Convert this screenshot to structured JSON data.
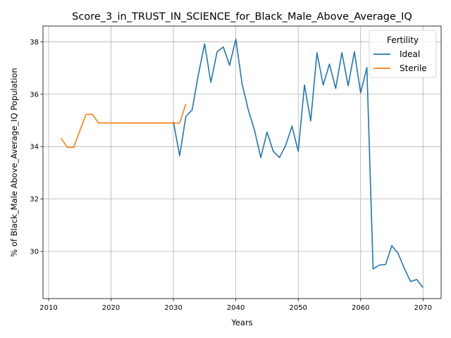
{
  "chart_data": {
    "type": "line",
    "title": "Score_3_in_TRUST_IN_SCIENCE_for_Black_Male_Above_Average_IQ",
    "xlabel": "Years",
    "ylabel": "% of Black_Male Above_Average_IQ Population",
    "xlim": [
      2009.1,
      2072.9
    ],
    "ylim": [
      28.2,
      38.6
    ],
    "xticks": [
      2010,
      2020,
      2030,
      2040,
      2050,
      2060,
      2070
    ],
    "yticks": [
      30,
      32,
      34,
      36,
      38
    ],
    "grid": true,
    "legend": {
      "title": "Fertility",
      "placement": "top-right"
    },
    "series": [
      {
        "name": "Ideal",
        "color": "#1f77b4",
        "x": [
          2030,
          2031,
          2032,
          2033,
          2034,
          2035,
          2036,
          2037,
          2038,
          2039,
          2040,
          2041,
          2042,
          2043,
          2044,
          2045,
          2046,
          2047,
          2048,
          2049,
          2050,
          2051,
          2052,
          2053,
          2054,
          2055,
          2056,
          2057,
          2058,
          2059,
          2060,
          2061,
          2062,
          2063,
          2064,
          2065,
          2066,
          2067,
          2068,
          2069,
          2070
        ],
        "y": [
          34.95,
          33.65,
          35.15,
          35.4,
          36.75,
          37.92,
          36.45,
          37.62,
          37.8,
          37.1,
          38.1,
          36.4,
          35.4,
          34.62,
          33.58,
          34.55,
          33.82,
          33.58,
          34.05,
          34.78,
          33.82,
          36.35,
          34.98,
          37.58,
          36.35,
          37.15,
          36.22,
          37.58,
          36.32,
          37.62,
          36.05,
          37.02,
          29.33,
          29.48,
          29.5,
          30.22,
          29.93,
          29.35,
          28.85,
          28.93,
          28.62
        ]
      },
      {
        "name": "Sterile",
        "color": "#ff7f0e",
        "x": [
          2012,
          2013,
          2014,
          2015,
          2016,
          2017,
          2018,
          2019,
          2020,
          2021,
          2022,
          2023,
          2024,
          2025,
          2026,
          2027,
          2028,
          2029,
          2030,
          2031,
          2032
        ],
        "y": [
          34.32,
          33.97,
          33.97,
          34.6,
          35.23,
          35.23,
          34.9,
          34.9,
          34.9,
          34.9,
          34.9,
          34.9,
          34.9,
          34.9,
          34.9,
          34.9,
          34.9,
          34.9,
          34.9,
          34.9,
          35.63
        ]
      }
    ]
  }
}
